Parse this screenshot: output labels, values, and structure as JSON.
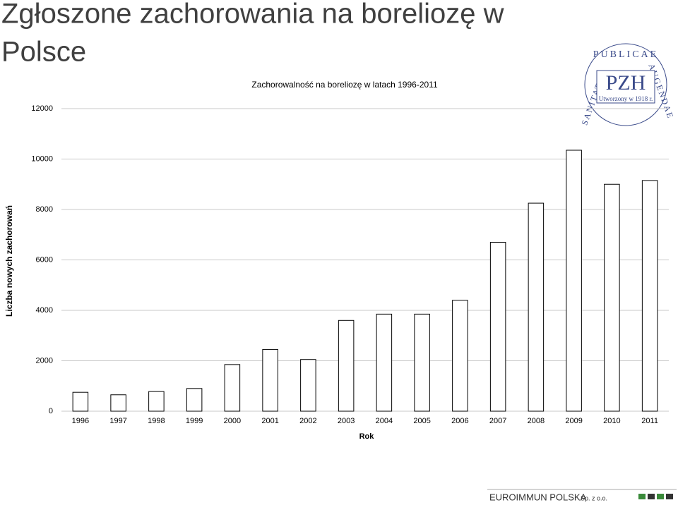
{
  "slide_title": "Zgłoszone zachorowania na boreliozę w Polsce",
  "logo": {
    "ring_top": "PUBLICAE",
    "ring_right": "AUGENDAE",
    "ring_left": "SANITATI",
    "name": "PZH",
    "subtitle": "Utworzony w 1918 r."
  },
  "footer": {
    "company": "EUROIMMUN POLSKA",
    "suffix": "Sp. z o.o."
  },
  "chart_data": {
    "type": "bar",
    "title": "Zachorowalność na boreliozę w latach 1996-2011",
    "x_label": "Rok",
    "y_label": "Liczba nowych zachorowań",
    "categories": [
      "1996",
      "1997",
      "1998",
      "1999",
      "2000",
      "2001",
      "2002",
      "2003",
      "2004",
      "2005",
      "2006",
      "2007",
      "2008",
      "2009",
      "2010",
      "2011"
    ],
    "values": [
      750,
      650,
      780,
      900,
      1850,
      2450,
      2050,
      3600,
      3850,
      3850,
      4400,
      6700,
      8250,
      10350,
      9000,
      9150
    ],
    "color": "#ffffff",
    "ylim": [
      0,
      12000
    ],
    "yticks": [
      0,
      2000,
      4000,
      6000,
      8000,
      10000,
      12000
    ],
    "grid": true
  }
}
